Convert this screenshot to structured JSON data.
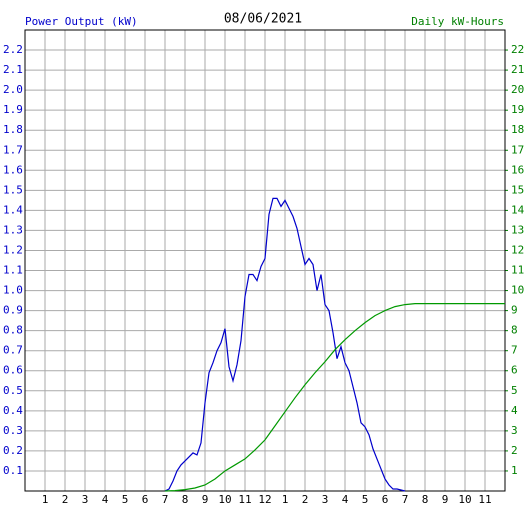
{
  "chart_data": {
    "type": "line",
    "title": "08/06/2021",
    "y_label": "Power Output (kW)",
    "y2_label": "Daily kW-Hours",
    "xlim": [
      0,
      24
    ],
    "xticks": [
      1,
      2,
      3,
      4,
      5,
      6,
      7,
      8,
      9,
      10,
      11,
      12,
      {
        "value": 13,
        "label": "1"
      },
      {
        "value": 14,
        "label": "2"
      },
      {
        "value": 15,
        "label": "3"
      },
      {
        "value": 16,
        "label": "4"
      },
      {
        "value": 17,
        "label": "5"
      },
      {
        "value": 18,
        "label": "6"
      },
      {
        "value": 19,
        "label": "7"
      },
      {
        "value": 20,
        "label": "8"
      },
      {
        "value": 21,
        "label": "9"
      },
      {
        "value": 22,
        "label": "10"
      },
      {
        "value": 23,
        "label": "11"
      }
    ],
    "ylim": [
      0,
      2.3
    ],
    "yticks": [
      0.1,
      0.2,
      0.3,
      0.4,
      0.5,
      0.6,
      0.7,
      0.8,
      0.9,
      {
        "value": 1,
        "label": "1.0"
      },
      1.1,
      1.2,
      1.3,
      1.4,
      1.5,
      1.6,
      1.7,
      1.8,
      1.9,
      {
        "value": 2,
        "label": "2.0"
      },
      2.1,
      2.2
    ],
    "y2lim": [
      0,
      23
    ],
    "y2ticks": [
      1,
      2,
      3,
      4,
      5,
      6,
      7,
      8,
      9,
      10,
      11,
      12,
      13,
      14,
      15,
      16,
      17,
      18,
      19,
      20,
      21,
      22
    ],
    "grid": true,
    "series": [
      {
        "name": "Power Output (kW)",
        "color": "#0000cc",
        "axis": "y",
        "x": [
          7,
          7.2,
          7.4,
          7.6,
          7.8,
          8,
          8.2,
          8.4,
          8.6,
          8.8,
          9,
          9.2,
          9.4,
          9.6,
          9.8,
          10,
          10.2,
          10.4,
          10.6,
          10.8,
          11,
          11.2,
          11.4,
          11.6,
          11.8,
          12,
          12.2,
          12.4,
          12.6,
          12.8,
          13,
          13.2,
          13.4,
          13.6,
          13.8,
          14,
          14.2,
          14.4,
          14.6,
          14.8,
          15,
          15.2,
          15.4,
          15.6,
          15.8,
          16,
          16.2,
          16.4,
          16.6,
          16.8,
          17,
          17.2,
          17.4,
          17.6,
          17.8,
          18,
          18.2,
          18.4,
          18.6,
          18.8,
          19
        ],
        "values": [
          0,
          0.01,
          0.05,
          0.1,
          0.13,
          0.15,
          0.17,
          0.19,
          0.18,
          0.24,
          0.44,
          0.59,
          0.64,
          0.7,
          0.74,
          0.81,
          0.62,
          0.55,
          0.63,
          0.75,
          0.97,
          1.08,
          1.08,
          1.05,
          1.12,
          1.16,
          1.38,
          1.46,
          1.46,
          1.42,
          1.45,
          1.41,
          1.37,
          1.31,
          1.22,
          1.13,
          1.16,
          1.13,
          1.0,
          1.08,
          0.93,
          0.9,
          0.79,
          0.66,
          0.72,
          0.64,
          0.6,
          0.52,
          0.44,
          0.34,
          0.32,
          0.28,
          0.21,
          0.16,
          0.11,
          0.06,
          0.03,
          0.01,
          0.01,
          0.005,
          0
        ]
      },
      {
        "name": "Daily kW-Hours",
        "color": "#009900",
        "axis": "y2",
        "x": [
          7,
          7.5,
          8,
          8.5,
          9,
          9.5,
          10,
          10.5,
          11,
          11.5,
          12,
          12.5,
          13,
          13.5,
          14,
          14.5,
          15,
          15.5,
          16,
          16.5,
          17,
          17.5,
          18,
          18.5,
          19,
          19.5,
          24
        ],
        "values": [
          0,
          0.02,
          0.07,
          0.15,
          0.3,
          0.6,
          1.0,
          1.3,
          1.6,
          2.05,
          2.55,
          3.25,
          3.95,
          4.65,
          5.3,
          5.9,
          6.45,
          7.05,
          7.55,
          8.0,
          8.4,
          8.75,
          9.0,
          9.2,
          9.3,
          9.35,
          9.35
        ]
      }
    ]
  }
}
